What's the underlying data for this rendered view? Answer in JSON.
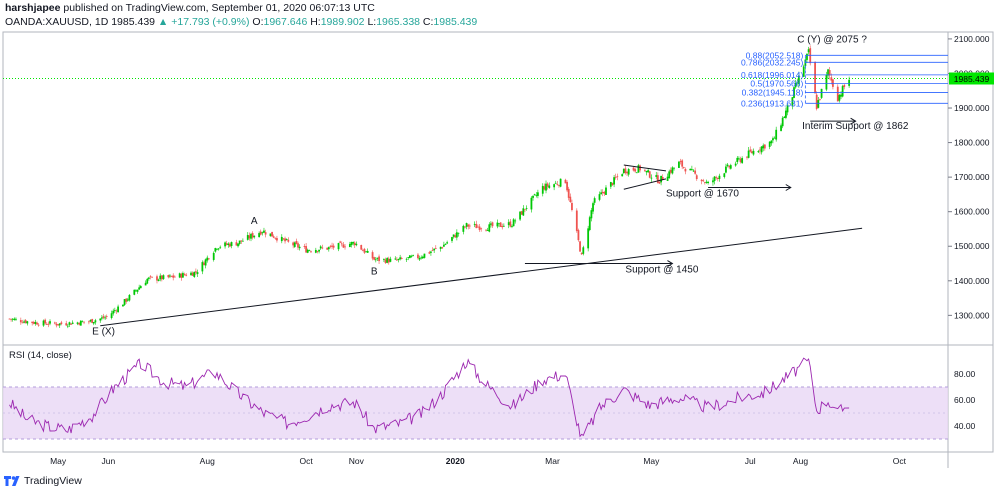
{
  "header": {
    "author": "harshjapee",
    "published_text": "published on TradingView.com, September 01, 2020 06:07:13 UTC",
    "symbol": "OANDA:XAUUSD, 1D",
    "last": "1985.439",
    "change": "+17.793 (+0.9%)",
    "open_label": "O:",
    "open": "1967.646",
    "high_label": "H:",
    "high": "1989.902",
    "low_label": "L:",
    "low": "1965.338",
    "close_label": "C:",
    "close": "1985.439"
  },
  "price_badge": "1985.439",
  "rsi_label": "RSI (14, close)",
  "footer": {
    "brand": "TradingView"
  },
  "colors": {
    "up": "#26a69a",
    "down": "#ef5350",
    "candle_up": "#00c805",
    "rsi_line": "#9c27b0",
    "rsi_band": "#e9d7f5",
    "fib_line": "#2962ff",
    "badge": "#00e600"
  },
  "chart_data": {
    "type": "candlestick",
    "price_axis": {
      "range": [
        1220,
        2120
      ],
      "ticks": [
        1300,
        1400,
        1500,
        1600,
        1700,
        1800,
        1900,
        2000,
        2100
      ],
      "tick_labels": [
        "1300.000",
        "1400.000",
        "1500.000",
        "1600.000",
        "1700.000",
        "1800.000",
        "1900.000",
        "2000.000",
        "2100.000"
      ]
    },
    "time_axis": {
      "labels": [
        "May",
        "Jun",
        "Aug",
        "Oct",
        "Nov",
        "2020",
        "Mar",
        "May",
        "Jul",
        "Aug",
        "Oct"
      ],
      "bold": [
        "2020"
      ]
    },
    "price_path": [
      [
        "2019-04-01",
        1290
      ],
      [
        "2019-04-15",
        1280
      ],
      [
        "2019-05-01",
        1275
      ],
      [
        "2019-05-20",
        1282
      ],
      [
        "2019-05-31",
        1295
      ],
      [
        "2019-06-10",
        1335
      ],
      [
        "2019-06-25",
        1405
      ],
      [
        "2019-07-10",
        1410
      ],
      [
        "2019-07-25",
        1425
      ],
      [
        "2019-08-07",
        1500
      ],
      [
        "2019-08-20",
        1510
      ],
      [
        "2019-09-04",
        1545
      ],
      [
        "2019-09-20",
        1510
      ],
      [
        "2019-10-01",
        1490
      ],
      [
        "2019-10-15",
        1495
      ],
      [
        "2019-10-31",
        1510
      ],
      [
        "2019-11-12",
        1462
      ],
      [
        "2019-11-25",
        1458
      ],
      [
        "2019-12-10",
        1470
      ],
      [
        "2019-12-24",
        1500
      ],
      [
        "2020-01-08",
        1560
      ],
      [
        "2020-01-20",
        1555
      ],
      [
        "2020-02-05",
        1565
      ],
      [
        "2020-02-24",
        1670
      ],
      [
        "2020-03-09",
        1690
      ],
      [
        "2020-03-19",
        1470
      ],
      [
        "2020-03-26",
        1625
      ],
      [
        "2020-04-14",
        1720
      ],
      [
        "2020-04-24",
        1725
      ],
      [
        "2020-05-06",
        1690
      ],
      [
        "2020-05-18",
        1740
      ],
      [
        "2020-06-05",
        1680
      ],
      [
        "2020-06-18",
        1730
      ],
      [
        "2020-07-01",
        1770
      ],
      [
        "2020-07-15",
        1805
      ],
      [
        "2020-07-24",
        1900
      ],
      [
        "2020-08-06",
        2060
      ],
      [
        "2020-08-11",
        1905
      ],
      [
        "2020-08-18",
        2005
      ],
      [
        "2020-08-24",
        1930
      ],
      [
        "2020-08-31",
        1985
      ]
    ],
    "rsi": {
      "range": [
        20,
        100
      ],
      "ticks": [
        40,
        60,
        80
      ],
      "tick_labels": [
        "40.00",
        "60.00",
        "80.00"
      ],
      "band": [
        30,
        70
      ],
      "path": [
        [
          "2019-04-01",
          58
        ],
        [
          "2019-04-12",
          45
        ],
        [
          "2019-04-24",
          40
        ],
        [
          "2019-05-07",
          37
        ],
        [
          "2019-05-22",
          48
        ],
        [
          "2019-06-05",
          70
        ],
        [
          "2019-06-21",
          88
        ],
        [
          "2019-07-05",
          74
        ],
        [
          "2019-07-19",
          70
        ],
        [
          "2019-08-05",
          82
        ],
        [
          "2019-08-23",
          62
        ],
        [
          "2019-09-05",
          50
        ],
        [
          "2019-09-20",
          42
        ],
        [
          "2019-10-02",
          48
        ],
        [
          "2019-10-15",
          56
        ],
        [
          "2019-10-31",
          58
        ],
        [
          "2019-11-12",
          38
        ],
        [
          "2019-11-28",
          42
        ],
        [
          "2019-12-12",
          50
        ],
        [
          "2019-12-24",
          65
        ],
        [
          "2020-01-08",
          90
        ],
        [
          "2020-01-20",
          72
        ],
        [
          "2020-02-05",
          55
        ],
        [
          "2020-02-24",
          76
        ],
        [
          "2020-03-09",
          80
        ],
        [
          "2020-03-19",
          30
        ],
        [
          "2020-03-31",
          55
        ],
        [
          "2020-04-14",
          68
        ],
        [
          "2020-04-30",
          56
        ],
        [
          "2020-05-18",
          62
        ],
        [
          "2020-06-05",
          54
        ],
        [
          "2020-06-25",
          62
        ],
        [
          "2020-07-10",
          66
        ],
        [
          "2020-07-24",
          78
        ],
        [
          "2020-08-06",
          90
        ],
        [
          "2020-08-11",
          52
        ],
        [
          "2020-08-18",
          60
        ],
        [
          "2020-08-24",
          50
        ],
        [
          "2020-08-31",
          57
        ]
      ]
    },
    "fibonacci": [
      {
        "ratio_label": "0.88(2052.518)",
        "price": 2052.518
      },
      {
        "ratio_label": "0.786(2032.245)",
        "price": 2032.245
      },
      {
        "ratio_label": "0.618(1996.014)",
        "price": 1996.014
      },
      {
        "ratio_label": "0.5(1970.566)",
        "price": 1970.566
      },
      {
        "ratio_label": "0.382(1945.118)",
        "price": 1945.118
      },
      {
        "ratio_label": "0.236(1913.631)",
        "price": 1913.631
      }
    ],
    "annotations": [
      {
        "text": "C (Y) @ 2075 ?",
        "date": "2020-07-30",
        "price": 2090
      },
      {
        "text": "A",
        "date": "2019-08-30",
        "price": 1565
      },
      {
        "text": "B",
        "date": "2019-11-12",
        "price": 1418
      },
      {
        "text": "E (X)",
        "date": "2019-05-22",
        "price": 1245
      },
      {
        "text": "Support @ 1670",
        "date": "2020-05-10",
        "price": 1644
      },
      {
        "text": "Support @ 1450",
        "date": "2020-04-15",
        "price": 1424
      },
      {
        "text": "Interim Support @ 1862",
        "date": "2020-08-02",
        "price": 1840
      }
    ],
    "trendline": [
      [
        "2019-05-27",
        1270
      ],
      [
        "2020-09-08",
        1552
      ]
    ],
    "support_arrows": [
      {
        "from": [
          "2020-06-05",
          1670
        ],
        "to": [
          "2020-07-26",
          1670
        ]
      },
      {
        "from": [
          "2020-02-13",
          1450
        ],
        "to": [
          "2020-05-14",
          1450
        ]
      },
      {
        "from": [
          "2020-08-07",
          1862
        ],
        "to": [
          "2020-09-04",
          1862
        ]
      }
    ],
    "triangle": [
      [
        [
          "2020-04-14",
          1735
        ],
        [
          "2020-05-10",
          1718
        ]
      ],
      [
        [
          "2020-04-14",
          1665
        ],
        [
          "2020-05-10",
          1695
        ]
      ]
    ]
  }
}
